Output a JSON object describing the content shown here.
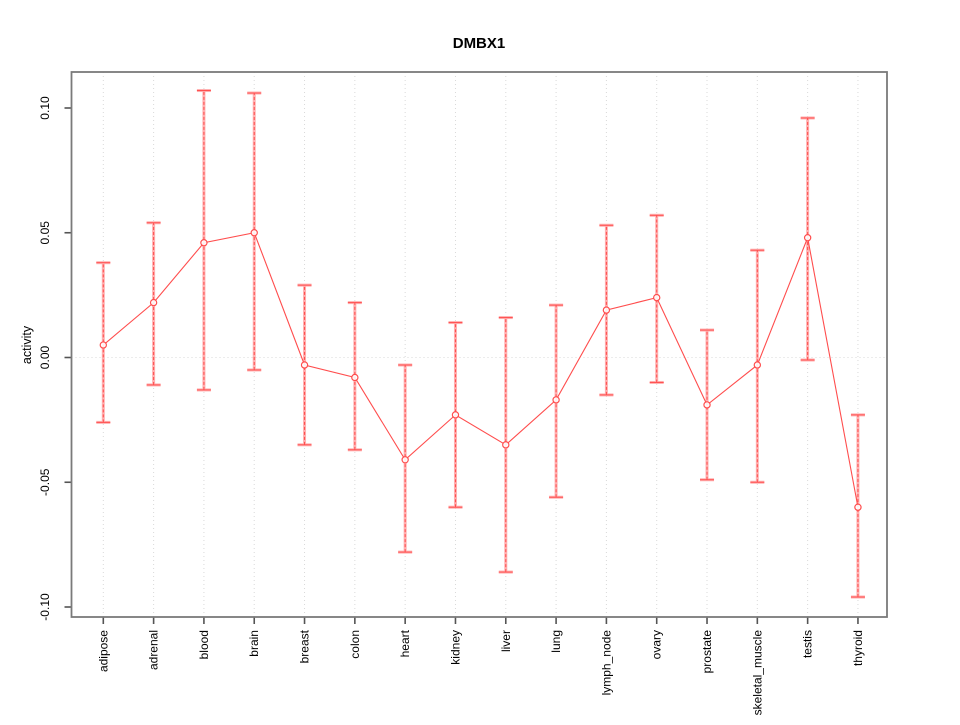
{
  "chart_data": {
    "type": "line",
    "title": "DMBX1",
    "ylabel": "activity",
    "xlabel": "",
    "categories": [
      "adipose",
      "adrenal",
      "blood",
      "brain",
      "breast",
      "colon",
      "heart",
      "kidney",
      "liver",
      "lung",
      "lymph_node",
      "ovary",
      "prostate",
      "skeletal_muscle",
      "testis",
      "thyroid"
    ],
    "series": [
      {
        "name": "activity",
        "values": [
          0.005,
          0.022,
          0.046,
          0.05,
          -0.003,
          -0.008,
          -0.041,
          -0.023,
          -0.035,
          -0.017,
          0.019,
          0.024,
          -0.019,
          -0.003,
          0.048,
          -0.06
        ],
        "lower": [
          -0.026,
          -0.011,
          -0.013,
          -0.005,
          -0.035,
          -0.037,
          -0.078,
          -0.06,
          -0.086,
          -0.056,
          -0.015,
          -0.01,
          -0.049,
          -0.05,
          -0.001,
          -0.096
        ],
        "upper": [
          0.038,
          0.054,
          0.107,
          0.106,
          0.029,
          0.022,
          -0.003,
          0.014,
          0.016,
          0.021,
          0.053,
          0.057,
          0.011,
          0.043,
          0.096,
          -0.023
        ]
      }
    ],
    "error_bars": true,
    "marker": "open-circle",
    "legend": "none",
    "ylim": [
      -0.104,
      0.114
    ],
    "yticks": [
      0.1,
      0.05,
      0.0,
      -0.05,
      -0.1
    ],
    "ytick_labels": [
      "0.10",
      "0.05",
      "0.00",
      "-0.05",
      "-0.10"
    ],
    "grid": {
      "vertical_dotted_per_category": true,
      "horizontal_dotted_at_zero": true
    },
    "colors": {
      "series": "#ff4d4d",
      "series_light": "#ffb0b0",
      "grid": "#d9d9d9",
      "frame": "#7a7a7a",
      "tick": "#545454",
      "text": "#000000",
      "background": "#ffffff"
    }
  }
}
